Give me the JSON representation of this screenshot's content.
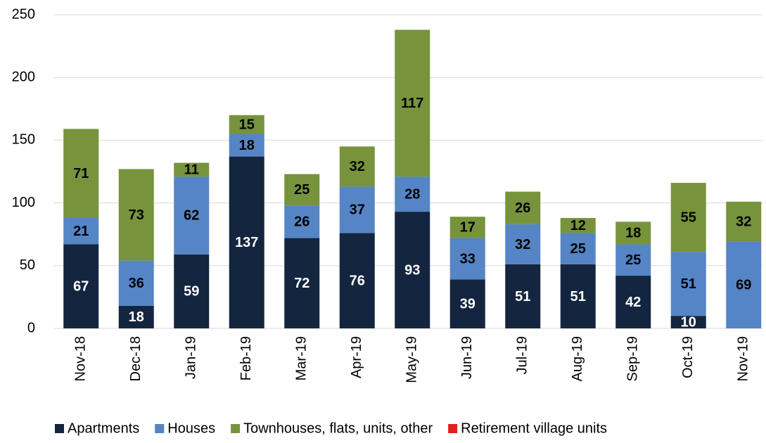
{
  "chart_data": {
    "type": "stacked_bar",
    "categories": [
      "Nov-18",
      "Dec-18",
      "Jan-19",
      "Feb-19",
      "Mar-19",
      "Apr-19",
      "May-19",
      "Jun-19",
      "Jul-19",
      "Aug-19",
      "Sep-19",
      "Oct-19",
      "Nov-19"
    ],
    "series": [
      {
        "name": "Apartments",
        "color": "#14253f",
        "values": [
          67,
          18,
          59,
          137,
          72,
          76,
          93,
          39,
          51,
          51,
          42,
          10,
          0
        ]
      },
      {
        "name": "Houses",
        "color": "#5585c5",
        "values": [
          21,
          36,
          62,
          18,
          26,
          37,
          28,
          33,
          32,
          25,
          25,
          51,
          69
        ]
      },
      {
        "name": "Townhouses, flats, units, other",
        "color": "#77933c",
        "values": [
          71,
          73,
          11,
          15,
          25,
          32,
          117,
          17,
          26,
          12,
          18,
          55,
          32
        ]
      },
      {
        "name": "Retirement village units",
        "color": "#e02020",
        "values": [
          0,
          0,
          0,
          0,
          0,
          0,
          0,
          0,
          0,
          0,
          0,
          0,
          0
        ]
      }
    ],
    "ylim": [
      0,
      250
    ],
    "yticks": [
      0,
      50,
      100,
      150,
      200,
      250
    ],
    "grid": true,
    "legend": "bottom"
  }
}
